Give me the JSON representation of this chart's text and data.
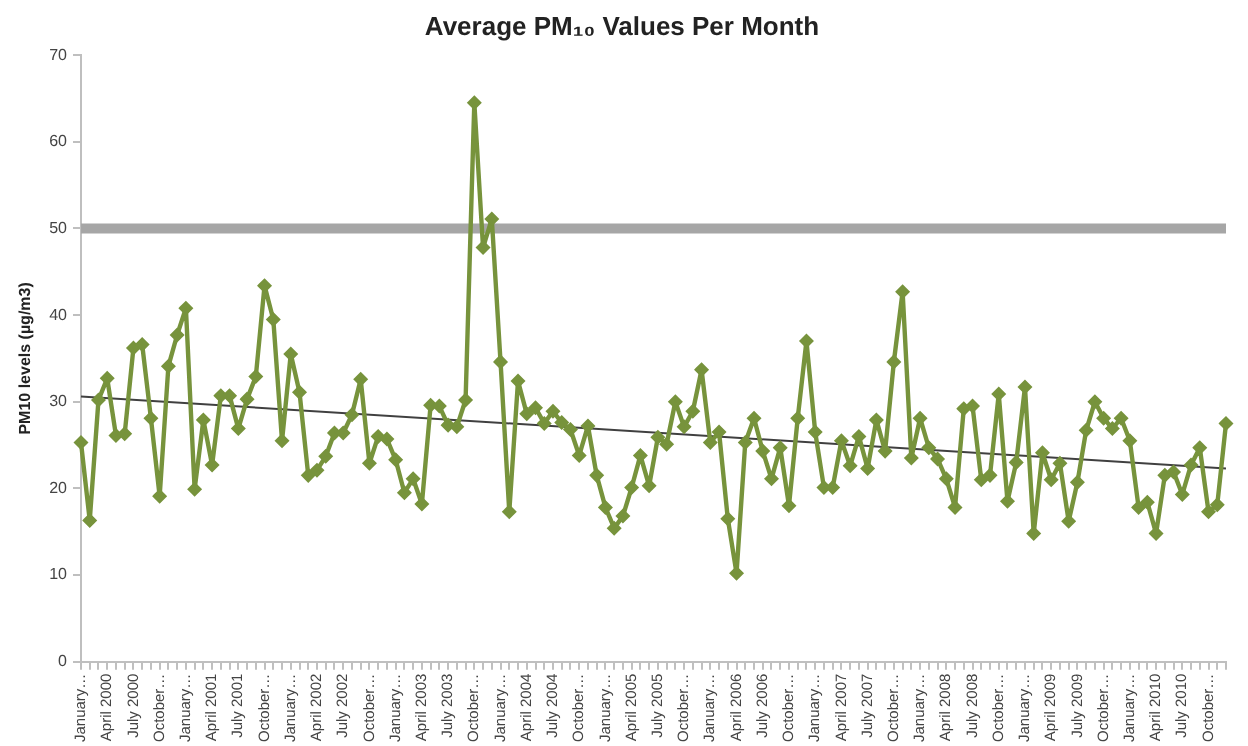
{
  "chart_data": {
    "type": "line",
    "title": "Average PM₁₀ Values Per Month",
    "ylabel": "PM10 levels (µg/m3)",
    "categories": [
      "January…",
      null,
      null,
      "April 2000",
      null,
      null,
      "July 2000",
      null,
      null,
      "October…",
      null,
      null,
      "January…",
      null,
      null,
      "April 2001",
      null,
      null,
      "July 2001",
      null,
      null,
      "October…",
      null,
      null,
      "January…",
      null,
      null,
      "April 2002",
      null,
      null,
      "July 2002",
      null,
      null,
      "October…",
      null,
      null,
      "January…",
      null,
      null,
      "April 2003",
      null,
      null,
      "July 2003",
      null,
      null,
      "October…",
      null,
      null,
      "January…",
      null,
      null,
      "April 2004",
      null,
      null,
      "July 2004",
      null,
      null,
      "October…",
      null,
      null,
      "January…",
      null,
      null,
      "April 2005",
      null,
      null,
      "July 2005",
      null,
      null,
      "October…",
      null,
      null,
      "January…",
      null,
      null,
      "April 2006",
      null,
      null,
      "July 2006",
      null,
      null,
      "October…",
      null,
      null,
      "January…",
      null,
      null,
      "April 2007",
      null,
      null,
      "July 2007",
      null,
      null,
      "October…",
      null,
      null,
      "January…",
      null,
      null,
      "April 2008",
      null,
      null,
      "July 2008",
      null,
      null,
      "October…",
      null,
      null,
      "January…",
      null,
      null,
      "April 2009",
      null,
      null,
      "July 2009",
      null,
      null,
      "October…",
      null,
      null,
      "January…",
      null,
      null,
      "April 2010",
      null,
      null,
      "July 2010",
      null,
      null,
      "October…",
      null,
      null
    ],
    "series": [
      {
        "color": "#77933c",
        "marker": "diamond",
        "values": [
          25.3,
          16.3,
          30.2,
          32.7,
          26.1,
          26.3,
          36.2,
          36.6,
          28.1,
          19.1,
          34.1,
          37.7,
          40.8,
          19.9,
          27.9,
          22.7,
          30.7,
          30.7,
          26.9,
          30.3,
          32.9,
          43.4,
          39.5,
          25.5,
          35.5,
          31.1,
          21.5,
          22.1,
          23.7,
          26.4,
          26.4,
          28.5,
          32.6,
          22.9,
          26.0,
          25.7,
          23.3,
          19.5,
          21.1,
          18.2,
          29.6,
          29.5,
          27.3,
          27.1,
          30.2,
          64.5,
          47.8,
          51.1,
          34.6,
          17.3,
          32.4,
          28.6,
          29.3,
          27.5,
          28.9,
          27.6,
          26.8,
          23.8,
          27.2,
          21.5,
          17.8,
          15.4,
          16.8,
          20.1,
          23.8,
          20.3,
          25.9,
          25.1,
          30.0,
          27.1,
          28.9,
          33.7,
          25.3,
          26.5,
          16.5,
          10.2,
          25.3,
          28.1,
          24.3,
          21.1,
          24.7,
          18.0,
          28.1,
          37.0,
          26.5,
          20.1,
          20.1,
          25.5,
          22.6,
          26.0,
          22.3,
          27.9,
          24.3,
          34.6,
          42.7,
          23.5,
          28.1,
          24.7,
          23.4,
          21.1,
          17.8,
          29.2,
          29.5,
          21.0,
          21.5,
          30.9,
          18.5,
          23.0,
          31.7,
          14.8,
          24.1,
          21.0,
          22.9,
          16.2,
          20.7,
          26.7,
          30.0,
          28.1,
          26.9,
          28.1,
          25.5,
          17.8,
          18.4,
          14.8,
          21.5,
          21.9,
          19.3,
          22.7,
          24.7,
          17.3,
          18.1,
          27.5
        ]
      },
      {
        "color": "#404040",
        "marker": "none",
        "values": [
          30.6,
          null,
          null,
          null,
          null,
          null,
          null,
          null,
          null,
          null,
          null,
          null,
          null,
          null,
          null,
          null,
          null,
          null,
          null,
          null,
          null,
          null,
          null,
          null,
          null,
          null,
          null,
          null,
          null,
          null,
          null,
          null,
          null,
          null,
          null,
          null,
          null,
          null,
          null,
          null,
          null,
          null,
          null,
          null,
          null,
          null,
          null,
          null,
          null,
          null,
          null,
          null,
          null,
          null,
          null,
          null,
          null,
          null,
          null,
          null,
          null,
          null,
          null,
          null,
          null,
          null,
          null,
          null,
          null,
          null,
          null,
          null,
          null,
          null,
          null,
          null,
          null,
          null,
          null,
          null,
          null,
          null,
          null,
          null,
          null,
          null,
          null,
          null,
          null,
          null,
          null,
          null,
          null,
          null,
          null,
          null,
          null,
          null,
          null,
          null,
          null,
          null,
          null,
          null,
          null,
          null,
          null,
          null,
          null,
          null,
          null,
          null,
          null,
          null,
          null,
          null,
          null,
          null,
          null,
          null,
          null,
          null,
          null,
          null,
          null,
          null,
          null,
          null,
          null,
          null,
          null,
          22.3
        ]
      }
    ],
    "ylim": [
      0,
      70
    ],
    "yticks": [
      0,
      10,
      20,
      30,
      40,
      50,
      60,
      70
    ],
    "ref_lines": [
      {
        "axis": "y",
        "value": 50,
        "color": "#a6a6a6"
      }
    ]
  }
}
